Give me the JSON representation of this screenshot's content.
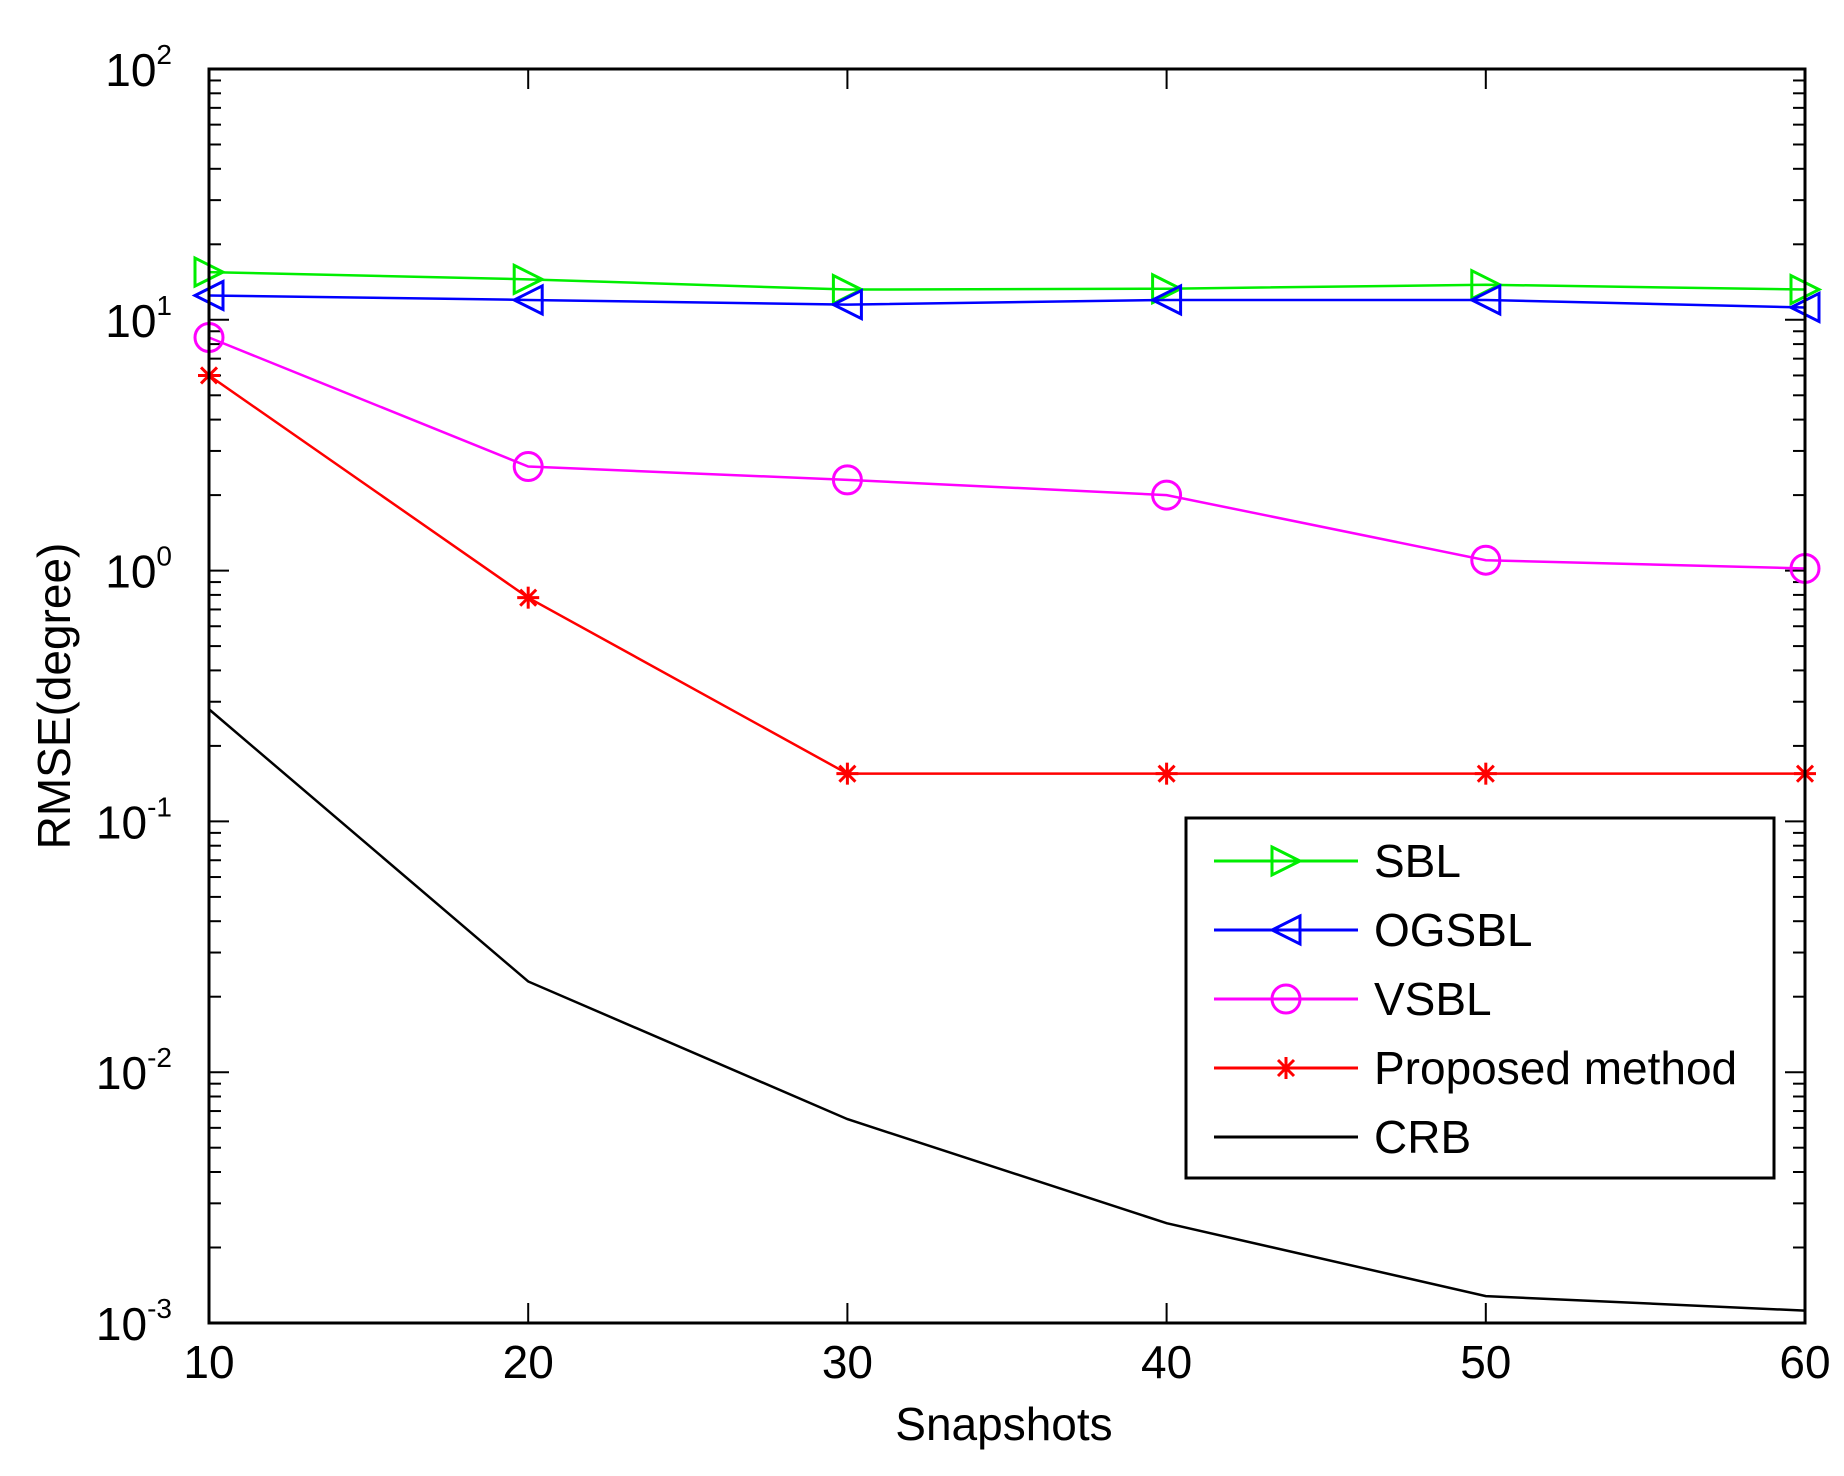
{
  "chart_data": {
    "type": "line",
    "title": "",
    "xlabel": "Snapshots",
    "ylabel": "RMSE(degree)",
    "xscale": "linear",
    "yscale": "log",
    "xlim": [
      10,
      60
    ],
    "ylim": [
      0.001,
      100
    ],
    "grid": false,
    "x": [
      10,
      20,
      30,
      40,
      50,
      60
    ],
    "x_ticks": [
      {
        "value": 10,
        "label": "10"
      },
      {
        "value": 20,
        "label": "20"
      },
      {
        "value": 30,
        "label": "30"
      },
      {
        "value": 40,
        "label": "40"
      },
      {
        "value": 50,
        "label": "50"
      },
      {
        "value": 60,
        "label": "60"
      }
    ],
    "y_ticks": [
      {
        "value": 0.001,
        "base": "10",
        "exp": "-3"
      },
      {
        "value": 0.01,
        "base": "10",
        "exp": "-2"
      },
      {
        "value": 0.1,
        "base": "10",
        "exp": "-1"
      },
      {
        "value": 1,
        "base": "10",
        "exp": "0"
      },
      {
        "value": 10,
        "base": "10",
        "exp": "1"
      },
      {
        "value": 100,
        "base": "10",
        "exp": "2"
      }
    ],
    "legend_position": "bottom-right",
    "series": [
      {
        "name": "SBL",
        "color": "#00ee00",
        "marker": "triangle-right",
        "values": [
          15.5,
          14.5,
          13.2,
          13.3,
          13.8,
          13.2
        ]
      },
      {
        "name": "OGSBL",
        "color": "#0000ff",
        "marker": "triangle-left",
        "values": [
          12.5,
          12.0,
          11.5,
          12.0,
          12.0,
          11.2
        ]
      },
      {
        "name": "VSBL",
        "color": "#ff00ff",
        "marker": "circle",
        "values": [
          8.5,
          2.6,
          2.3,
          2.0,
          1.1,
          1.02
        ]
      },
      {
        "name": "Proposed method",
        "color": "#ff0000",
        "marker": "star",
        "values": [
          6.0,
          0.78,
          0.155,
          0.155,
          0.155,
          0.155
        ]
      },
      {
        "name": "CRB",
        "color": "#000000",
        "marker": "none",
        "values": [
          0.28,
          0.023,
          0.0065,
          0.0025,
          0.00128,
          0.00112
        ]
      }
    ]
  }
}
